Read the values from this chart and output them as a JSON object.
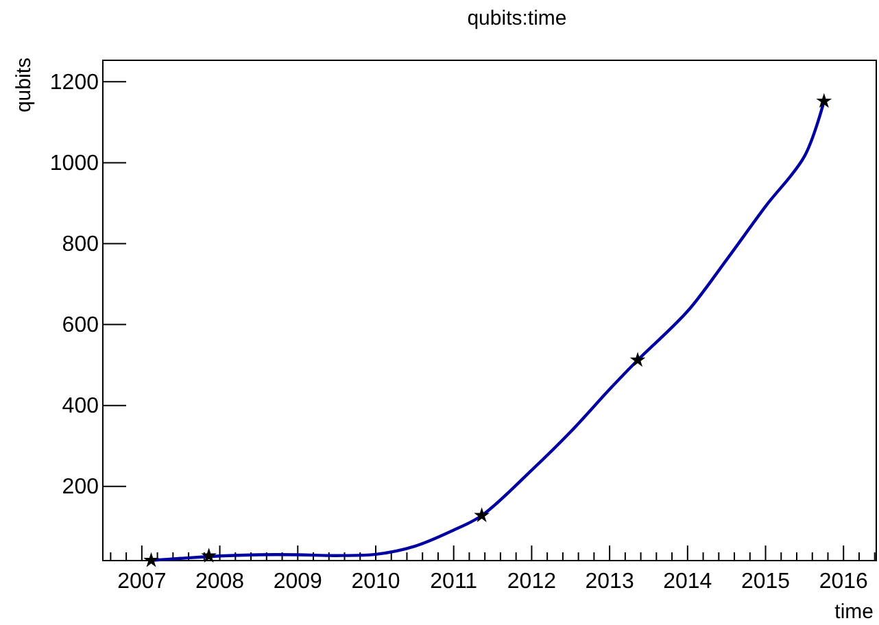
{
  "chart_data": {
    "type": "scatter",
    "title": "qubits:time",
    "xlabel": "time",
    "ylabel": "qubits",
    "xlim": [
      2006.5,
      2016.42
    ],
    "ylim": [
      16.6,
      1253
    ],
    "xticks": [
      2007,
      2008,
      2009,
      2010,
      2011,
      2012,
      2013,
      2014,
      2015,
      2016
    ],
    "yticks": [
      200,
      400,
      600,
      800,
      1000,
      1200
    ],
    "grid": false,
    "series": [
      {
        "type": "line",
        "color": "#0000a0",
        "marker": "none",
        "x": [
          2007.12,
          2007.5,
          2008,
          2008.5,
          2009,
          2009.5,
          2010,
          2010.5,
          2011,
          2011.36,
          2012,
          2012.5,
          2013,
          2013.36,
          2014,
          2014.5,
          2015,
          2015.5,
          2015.75
        ],
        "values": [
          17,
          22,
          28,
          31,
          31,
          29,
          32,
          52,
          92,
          128,
          240,
          335,
          440,
          512,
          633,
          760,
          892,
          1016,
          1152
        ]
      },
      {
        "color": "#000000",
        "marker": "star",
        "x": [
          2007.12,
          2007.86,
          2011.36,
          2013.36,
          2015.75
        ],
        "values": [
          17,
          28,
          128,
          512,
          1152
        ]
      }
    ]
  }
}
